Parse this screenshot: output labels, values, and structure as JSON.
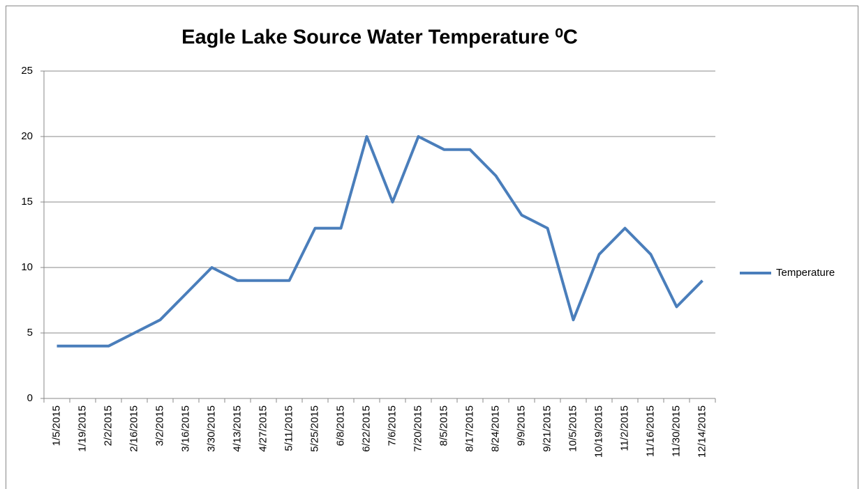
{
  "chart_data": {
    "type": "line",
    "title": "Eagle Lake Source Water Temperature ⁰C",
    "categories": [
      "1/5/2015",
      "1/19/2015",
      "2/2/2015",
      "2/16/2015",
      "3/2/2015",
      "3/16/2015",
      "3/30/2015",
      "4/13/2015",
      "4/27/2015",
      "5/11/2015",
      "5/25/2015",
      "6/8/2015",
      "6/22/2015",
      "7/6/2015",
      "7/20/2015",
      "8/5/2015",
      "8/17/2015",
      "8/24/2015",
      "9/9/2015",
      "9/21/2015",
      "10/5/2015",
      "10/19/2015",
      "11/2/2015",
      "11/16/2015",
      "11/30/2015",
      "12/14/2015"
    ],
    "series": [
      {
        "name": "Temperature",
        "color": "#4a7ebb",
        "values": [
          4,
          4,
          4,
          5,
          6,
          8,
          10,
          9,
          9,
          9,
          13,
          13,
          20,
          15,
          20,
          19,
          19,
          17,
          14,
          13,
          6,
          11,
          13,
          11,
          7,
          9
        ]
      }
    ],
    "ylim": [
      0,
      25
    ],
    "yticks": [
      0,
      5,
      10,
      15,
      20,
      25
    ],
    "grid": true,
    "legend": "right"
  }
}
